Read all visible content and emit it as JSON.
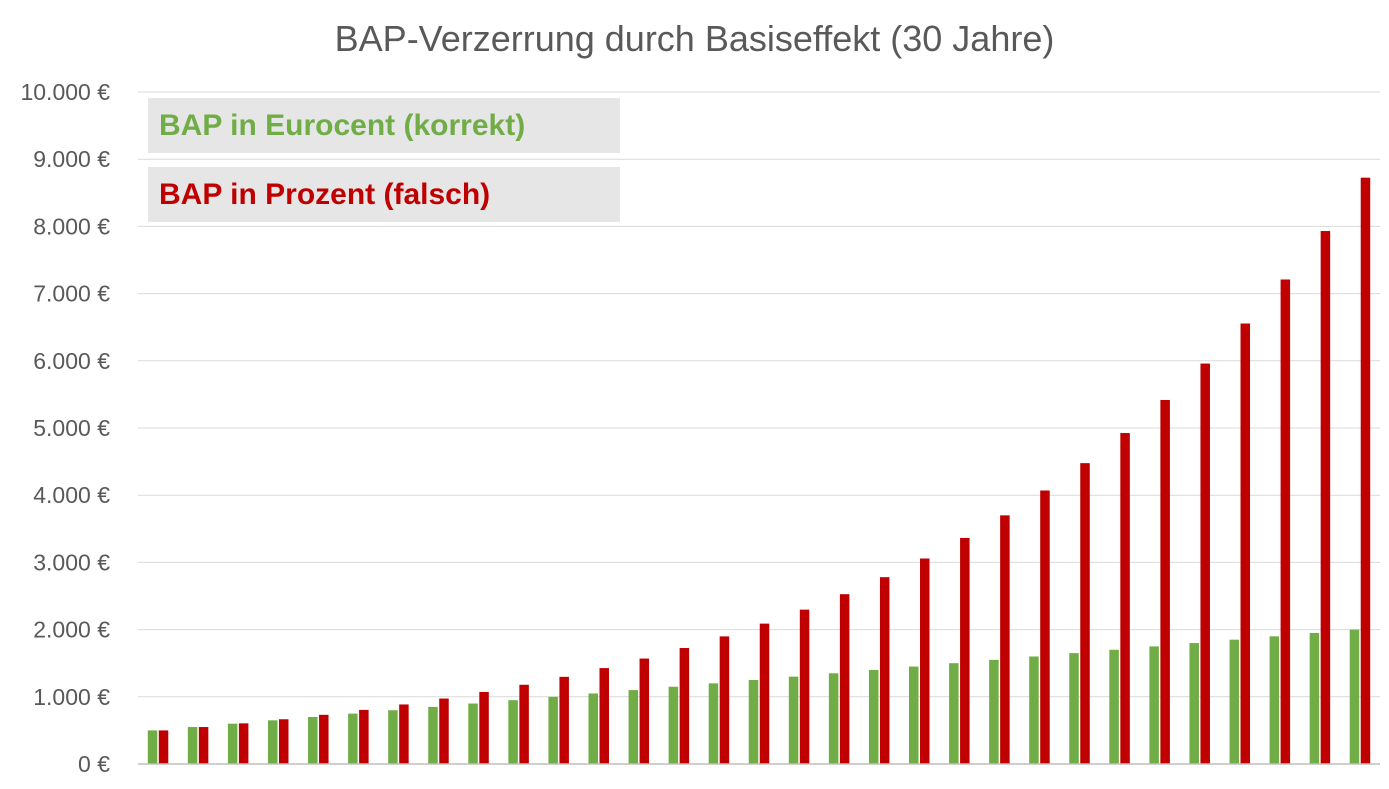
{
  "chart_data": {
    "type": "bar",
    "title": "BAP-Verzerrung durch Basiseffekt (30 Jahre)",
    "xlabel": "",
    "ylabel": "",
    "ylim": [
      0,
      10000
    ],
    "y_ticks": [
      0,
      1000,
      2000,
      3000,
      4000,
      5000,
      6000,
      7000,
      8000,
      9000,
      10000
    ],
    "y_tick_labels": [
      "0 €",
      "1.000 €",
      "2.000 €",
      "3.000 €",
      "4.000 €",
      "5.000 €",
      "6.000 €",
      "7.000 €",
      "8.000 €",
      "9.000 €",
      "10.000 €"
    ],
    "grid": true,
    "legend_position": "top-left",
    "series": [
      {
        "name": "BAP in Eurocent (korrekt)",
        "color": "#70ad47",
        "values": [
          500,
          550,
          600,
          650,
          700,
          750,
          800,
          850,
          900,
          950,
          1000,
          1050,
          1100,
          1150,
          1200,
          1250,
          1300,
          1350,
          1400,
          1450,
          1500,
          1550,
          1600,
          1650,
          1700,
          1750,
          1800,
          1850,
          1900,
          1950,
          2000
        ]
      },
      {
        "name": "BAP in Prozent (falsch)",
        "color": "#c00000",
        "values": [
          500,
          550,
          605,
          666,
          732,
          805,
          886,
          974,
          1072,
          1179,
          1297,
          1427,
          1569,
          1726,
          1899,
          2089,
          2297,
          2527,
          2780,
          3058,
          3364,
          3700,
          4070,
          4477,
          4925,
          5417,
          5959,
          6555,
          7210,
          7931,
          8725
        ]
      }
    ]
  }
}
